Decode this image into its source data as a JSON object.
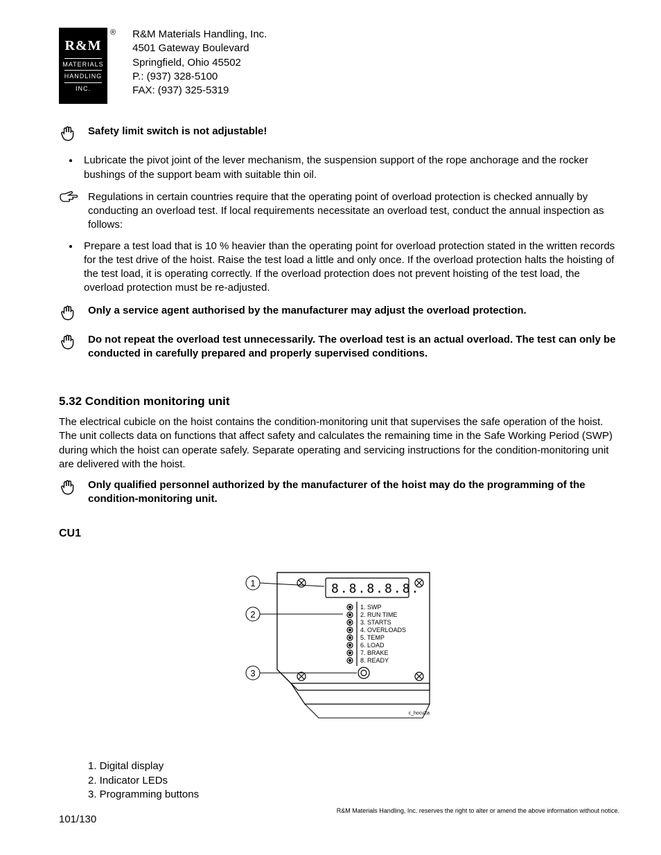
{
  "header": {
    "logo": {
      "top": "R&M",
      "l1": "MATERIALS",
      "l2": "HANDLING",
      "l3": "INC."
    },
    "regmark": "®",
    "company": {
      "name": "R&M Materials Handling, Inc.",
      "addr1": "4501 Gateway Boulevard",
      "addr2": "Springfield, Ohio 45502",
      "phone": "P.: (937) 328-5100",
      "fax": "FAX: (937) 325-5319"
    }
  },
  "notes": {
    "n1": "Safety limit switch is not adjustable!",
    "bullet1": "Lubricate the pivot joint of the lever mechanism, the suspension support of the rope anchorage and the rocker bushings of the support beam with suitable thin oil.",
    "n2": "Regulations in certain countries require that the operating point of overload protection is checked annually by conducting an overload test. If local requirements necessitate an overload test, conduct the annual inspection as follows:",
    "bullet2": "Prepare a test load that is 10 % heavier than the operating point for overload protection stated in the written records for the test drive of the hoist. Raise the test load a little and only once. If the overload protection halts the hoisting of the test load, it is operating correctly. If the overload protection does not prevent hoisting of the test load, the overload protection must be re-adjusted.",
    "n3": "Only a service agent authorised by the manufacturer may adjust the overload protection.",
    "n4": "Do not repeat the overload test unnecessarily. The overload test is an actual overload. The test can only be conducted in carefully prepared and properly supervised conditions."
  },
  "section": {
    "heading": "5.32  Condition monitoring unit",
    "body": "The electrical cubicle on the hoist contains the condition-monitoring unit that supervises the safe operation of the hoist. The unit collects data on functions that affect safety and calculates the remaining time in the Safe Working Period (SWP) during which the hoist can operate safely. Separate operating and servicing instructions for the condition-monitoring unit are delivered with the hoist.",
    "n5": "Only qualified personnel authorized by the manufacturer of the hoist may do the programming of the condition-monitoring unit.",
    "cu1": "CU1"
  },
  "diagram": {
    "callouts": [
      "1",
      "2",
      "3"
    ],
    "display": "8.8.8.8.8.",
    "labels": [
      "1. SWP",
      "2. RUN TIME",
      "3. STARTS",
      "4. OVERLOADS",
      "5. TEMP",
      "6. LOAD",
      "7. BRAKE",
      "8. READY"
    ],
    "ref": "c_hocu2a"
  },
  "legend": {
    "l1": "1. Digital display",
    "l2": "2. Indicator LEDs",
    "l3": "3. Programming buttons"
  },
  "footer": {
    "pagenum": "101/130",
    "disclaimer": "R&M Materials Handling, Inc. reserves the right to alter or amend the above information without notice."
  }
}
